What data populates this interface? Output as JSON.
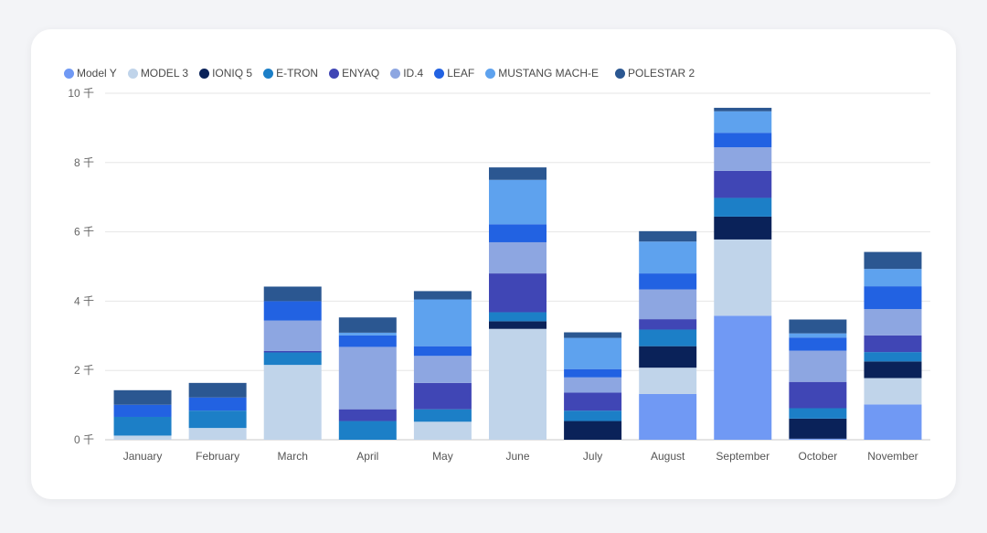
{
  "chart_data": {
    "type": "bar",
    "stacked": true,
    "legend_position": "top-left",
    "grid": true,
    "ylim": [
      0,
      10000
    ],
    "yticks": [
      {
        "value": 0,
        "label": "0 千"
      },
      {
        "value": 2000,
        "label": "2 千"
      },
      {
        "value": 4000,
        "label": "4 千"
      },
      {
        "value": 6000,
        "label": "6 千"
      },
      {
        "value": 8000,
        "label": "8 千"
      },
      {
        "value": 10000,
        "label": "10 千"
      }
    ],
    "categories": [
      "January",
      "February",
      "March",
      "April",
      "May",
      "June",
      "July",
      "August",
      "September",
      "October",
      "November"
    ],
    "series": [
      {
        "name": "Model Y",
        "color": "#7099f4",
        "values": [
          0,
          0,
          0,
          0,
          0,
          0,
          0,
          1320,
          3580,
          30,
          1020
        ]
      },
      {
        "name": "MODEL 3",
        "color": "#c0d4ea",
        "values": [
          120,
          340,
          2160,
          0,
          520,
          3200,
          0,
          760,
          2200,
          0,
          760
        ]
      },
      {
        "name": "IONIQ 5",
        "color": "#0a2259",
        "values": [
          0,
          0,
          0,
          0,
          0,
          220,
          540,
          620,
          660,
          580,
          480
        ]
      },
      {
        "name": "E-TRON",
        "color": "#1c7fc7",
        "values": [
          540,
          500,
          360,
          540,
          360,
          260,
          300,
          480,
          540,
          300,
          270
        ]
      },
      {
        "name": "ENYAQ",
        "color": "#4046b5",
        "values": [
          0,
          0,
          40,
          340,
          760,
          1120,
          520,
          300,
          780,
          760,
          480
        ]
      },
      {
        "name": "ID.4",
        "color": "#8da6e1",
        "values": [
          0,
          0,
          880,
          1800,
          780,
          900,
          440,
          860,
          680,
          900,
          760
        ]
      },
      {
        "name": "LEAF",
        "color": "#2262e2",
        "values": [
          350,
          380,
          560,
          330,
          280,
          520,
          240,
          460,
          420,
          380,
          660
        ]
      },
      {
        "name": "MUSTANG MACH-E",
        "color": "#5ea2ee",
        "values": [
          0,
          0,
          0,
          80,
          1350,
          1280,
          900,
          920,
          620,
          120,
          500
        ]
      },
      {
        "name": "POLESTAR 2",
        "color": "#2b5791",
        "values": [
          420,
          420,
          420,
          440,
          240,
          360,
          160,
          300,
          100,
          400,
          490
        ]
      }
    ]
  }
}
